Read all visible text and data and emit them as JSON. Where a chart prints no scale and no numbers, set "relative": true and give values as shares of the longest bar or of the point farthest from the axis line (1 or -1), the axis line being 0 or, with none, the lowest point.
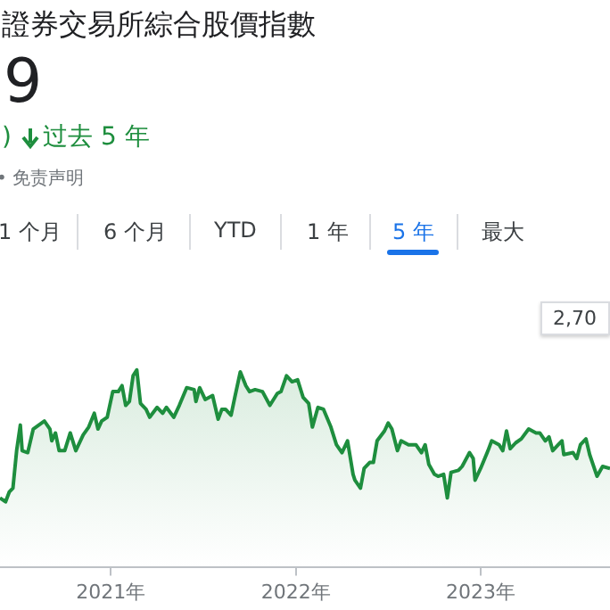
{
  "chart_data": {
    "type": "area",
    "title": "證券交易所綜合股價指數",
    "subtitle": "9",
    "annotations": [
      ")",
      "过去 5 年",
      "• 免责声明",
      "1 个月",
      "6 个月",
      "YTD",
      "1 年",
      "5 年",
      "最大",
      "2,70"
    ],
    "relative": true,
    "color": "#1e8e3e",
    "xlim": [
      2020.4,
      2023.7
    ],
    "xticks": [
      {
        "value": 2021,
        "label": "2021年"
      },
      {
        "value": 2022,
        "label": "2022年"
      },
      {
        "value": 2023,
        "label": "2023年"
      }
    ],
    "x": [
      2020.4,
      2020.43,
      2020.45,
      2020.47,
      2020.49,
      2020.51,
      2020.52,
      2020.55,
      2020.58,
      2020.61,
      2020.64,
      2020.67,
      2020.68,
      2020.7,
      2020.72,
      2020.75,
      2020.78,
      2020.81,
      2020.85,
      2020.88,
      2020.91,
      2020.93,
      2020.95,
      2020.98,
      2021.01,
      2021.04,
      2021.06,
      2021.08,
      2021.1,
      2021.12,
      2021.14,
      2021.16,
      2021.19,
      2021.21,
      2021.25,
      2021.28,
      2021.3,
      2021.34,
      2021.37,
      2021.41,
      2021.45,
      2021.46,
      2021.48,
      2021.51,
      2021.55,
      2021.58,
      2021.6,
      2021.62,
      2021.65,
      2021.67,
      2021.7,
      2021.73,
      2021.75,
      2021.78,
      2021.82,
      2021.86,
      2021.9,
      2021.92,
      2021.95,
      2021.98,
      2022.01,
      2022.04,
      2022.07,
      2022.09,
      2022.12,
      2022.15,
      2022.19,
      2022.22,
      2022.25,
      2022.28,
      2022.31,
      2022.32,
      2022.35,
      2022.37,
      2022.4,
      2022.42,
      2022.44,
      2022.48,
      2022.5,
      2022.52,
      2022.55,
      2022.57,
      2022.61,
      2022.65,
      2022.68,
      2022.7,
      2022.72,
      2022.75,
      2022.77,
      2022.8,
      2022.82,
      2022.84,
      2022.88,
      2022.9,
      2022.94,
      2022.96,
      2022.97,
      2023.0,
      2023.04,
      2023.06,
      2023.1,
      2023.12,
      2023.14,
      2023.16,
      2023.19,
      2023.22,
      2023.26,
      2023.3,
      2023.32,
      2023.35,
      2023.37,
      2023.39,
      2023.42,
      2023.44,
      2023.45,
      2023.5,
      2023.52,
      2023.54,
      2023.57,
      2023.59,
      2023.63,
      2023.66,
      2023.7
    ],
    "values": [
      0.35,
      0.33,
      0.38,
      0.4,
      0.59,
      0.72,
      0.59,
      0.58,
      0.7,
      0.72,
      0.74,
      0.7,
      0.64,
      0.68,
      0.59,
      0.59,
      0.68,
      0.59,
      0.67,
      0.71,
      0.78,
      0.7,
      0.74,
      0.76,
      0.89,
      0.89,
      0.92,
      0.82,
      0.84,
      0.97,
      1,
      0.83,
      0.8,
      0.76,
      0.81,
      0.78,
      0.81,
      0.76,
      0.82,
      0.91,
      0.9,
      0.84,
      0.91,
      0.85,
      0.87,
      0.75,
      0.8,
      0.8,
      0.77,
      0.86,
      0.99,
      0.92,
      0.89,
      0.9,
      0.89,
      0.82,
      0.88,
      0.89,
      0.97,
      0.94,
      0.95,
      0.86,
      0.83,
      0.71,
      0.81,
      0.8,
      0.71,
      0.62,
      0.58,
      0.64,
      0.47,
      0.44,
      0.4,
      0.5,
      0.53,
      0.53,
      0.64,
      0.69,
      0.73,
      0.7,
      0.59,
      0.64,
      0.62,
      0.62,
      0.58,
      0.62,
      0.52,
      0.47,
      0.46,
      0.47,
      0.35,
      0.48,
      0.49,
      0.51,
      0.58,
      0.55,
      0.44,
      0.5,
      0.59,
      0.64,
      0.62,
      0.59,
      0.69,
      0.6,
      0.63,
      0.65,
      0.7,
      0.68,
      0.68,
      0.64,
      0.66,
      0.59,
      0.62,
      0.64,
      0.57,
      0.58,
      0.55,
      0.62,
      0.65,
      0.57,
      0.46,
      0.51,
      0.5
    ]
  }
}
